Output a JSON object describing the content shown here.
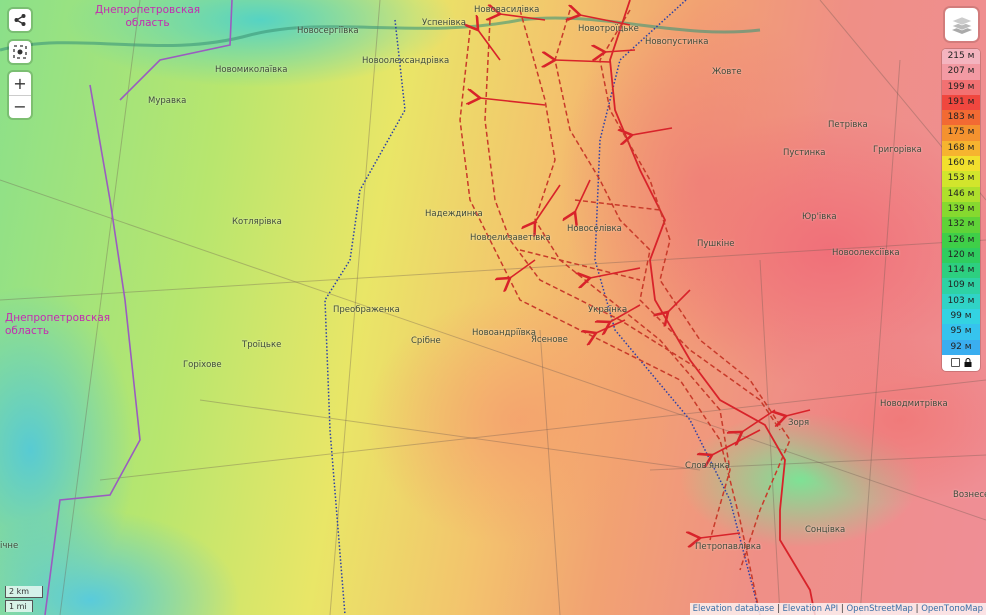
{
  "regions": [
    {
      "line1": "Днепропетровская",
      "line2": "область"
    },
    {
      "line1": "Днепропетровская",
      "line2": "область"
    }
  ],
  "places": {
    "novoserhiivka": "Новосергіївка",
    "uspenivka": "Успенівка",
    "novovasylivka": "Нововасилівка",
    "novotroitske": "Новотроїцьке",
    "novopustynka": "Новопустинка",
    "zhovte": "Жовте",
    "novooleksandrivka": "Новоолександрівка",
    "novomykolaivka": "Новомиколаївка",
    "muravka": "Муравка",
    "petrivka": "Петрівка",
    "hryhorivka": "Григорівка",
    "pustynka": "Пустинка",
    "kotliarivka": "Котлярівка",
    "nadezhdynka": "Надеждинка",
    "yurivka": "Юр'івка",
    "novoelyzavetivka": "Новоелизаветівка",
    "novoselivka": "Новоселівка",
    "pushkine": "Пушкіне",
    "novooleksiivka": "Новоолексіївка",
    "preobrazhenka": "Преображенка",
    "ukrainka": "Українка",
    "novoandriivka": "Новоандріївка",
    "yasenove": "Ясенове",
    "sribne": "Срібне",
    "troitske": "Троїцьке",
    "horikhove": "Горіхове",
    "novodmytrivka": "Новодмитрівка",
    "zoria": "Зоря",
    "slovianka": "Слов'янка",
    "voznesenka": "Вознесе",
    "sontsivka": "Сонцівка",
    "petropavlivka": "Петропавлівка",
    "partial_left": "ічне"
  },
  "controls": {
    "share_icon": "share-icon",
    "locate_icon": "locate-icon",
    "zoom_in": "+",
    "zoom_out": "−",
    "layers_icon": "layers-icon"
  },
  "elevation_legend": [
    {
      "label": "215 м",
      "color": "#f4b4bf"
    },
    {
      "label": "207 м",
      "color": "#f39aa3"
    },
    {
      "label": "199 м",
      "color": "#f27172"
    },
    {
      "label": "191 м",
      "color": "#f0473f"
    },
    {
      "label": "183 м",
      "color": "#f26a33"
    },
    {
      "label": "175 м",
      "color": "#f4922f"
    },
    {
      "label": "168 м",
      "color": "#f6b42f"
    },
    {
      "label": "160 м",
      "color": "#f2e02d"
    },
    {
      "label": "153 м",
      "color": "#d2e52c"
    },
    {
      "label": "146 м",
      "color": "#aee02c"
    },
    {
      "label": "139 м",
      "color": "#86d92f"
    },
    {
      "label": "132 м",
      "color": "#5fd338"
    },
    {
      "label": "126 м",
      "color": "#3fcf48"
    },
    {
      "label": "120 м",
      "color": "#2fcd5f"
    },
    {
      "label": "114 м",
      "color": "#2dcf80"
    },
    {
      "label": "109 м",
      "color": "#2ed2a4"
    },
    {
      "label": "103 м",
      "color": "#30d3c6"
    },
    {
      "label": "99 м",
      "color": "#33d3e2"
    },
    {
      "label": "95 м",
      "color": "#36c4ee"
    },
    {
      "label": "92 м",
      "color": "#3aaef0"
    }
  ],
  "legend_lock_icon": "lock-icon",
  "scale": {
    "metric": "2 km",
    "imperial": "1 mi"
  },
  "attribution": [
    "Elevation database",
    "Elevation API",
    "OpenStreetMap",
    "OpenТопоMap"
  ],
  "colors": {
    "front_line": "#d8232a",
    "region_border": "#9a5cc0",
    "region_label": "#c42ab0",
    "border_dotted": "#2a3fa8"
  }
}
